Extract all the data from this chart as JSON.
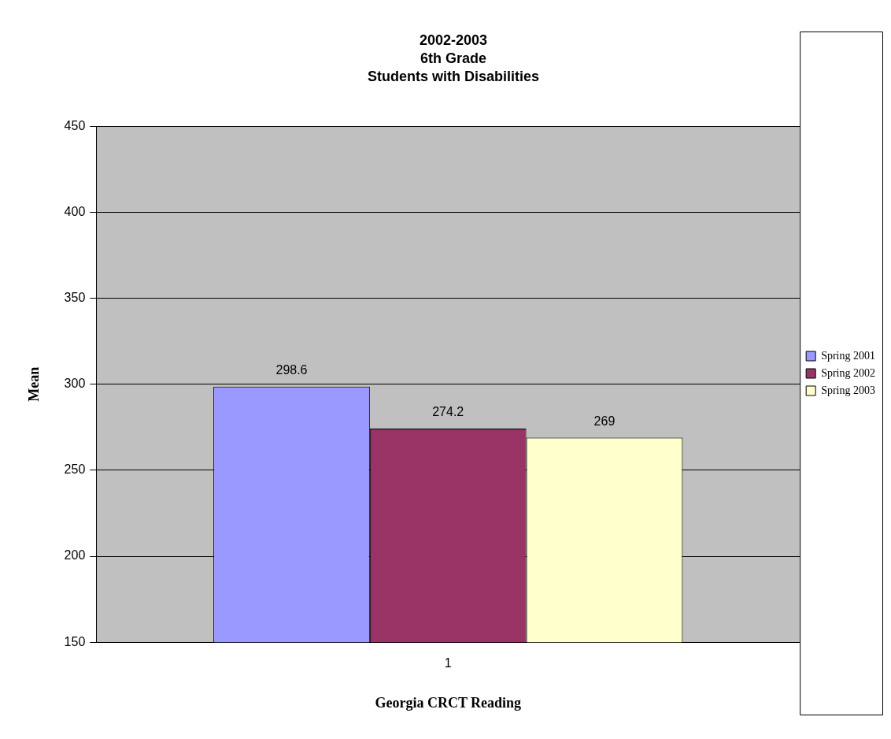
{
  "chart_data": {
    "type": "bar",
    "title": "2002-2003\n6th Grade\nStudents with Disabilities",
    "xlabel": "Georgia CRCT Reading",
    "ylabel": "Mean",
    "categories": [
      "1"
    ],
    "series": [
      {
        "name": "Spring 2001",
        "color": "#9999ff",
        "values": [
          298.6
        ]
      },
      {
        "name": "Spring 2002",
        "color": "#993366",
        "values": [
          274.2
        ]
      },
      {
        "name": "Spring 2003",
        "color": "#ffffcc",
        "values": [
          269
        ]
      }
    ],
    "ylim": [
      150,
      450
    ],
    "yticks": [
      150,
      200,
      250,
      300,
      350,
      400,
      450
    ],
    "grid": "y",
    "legend": "right",
    "data_labels": true
  }
}
